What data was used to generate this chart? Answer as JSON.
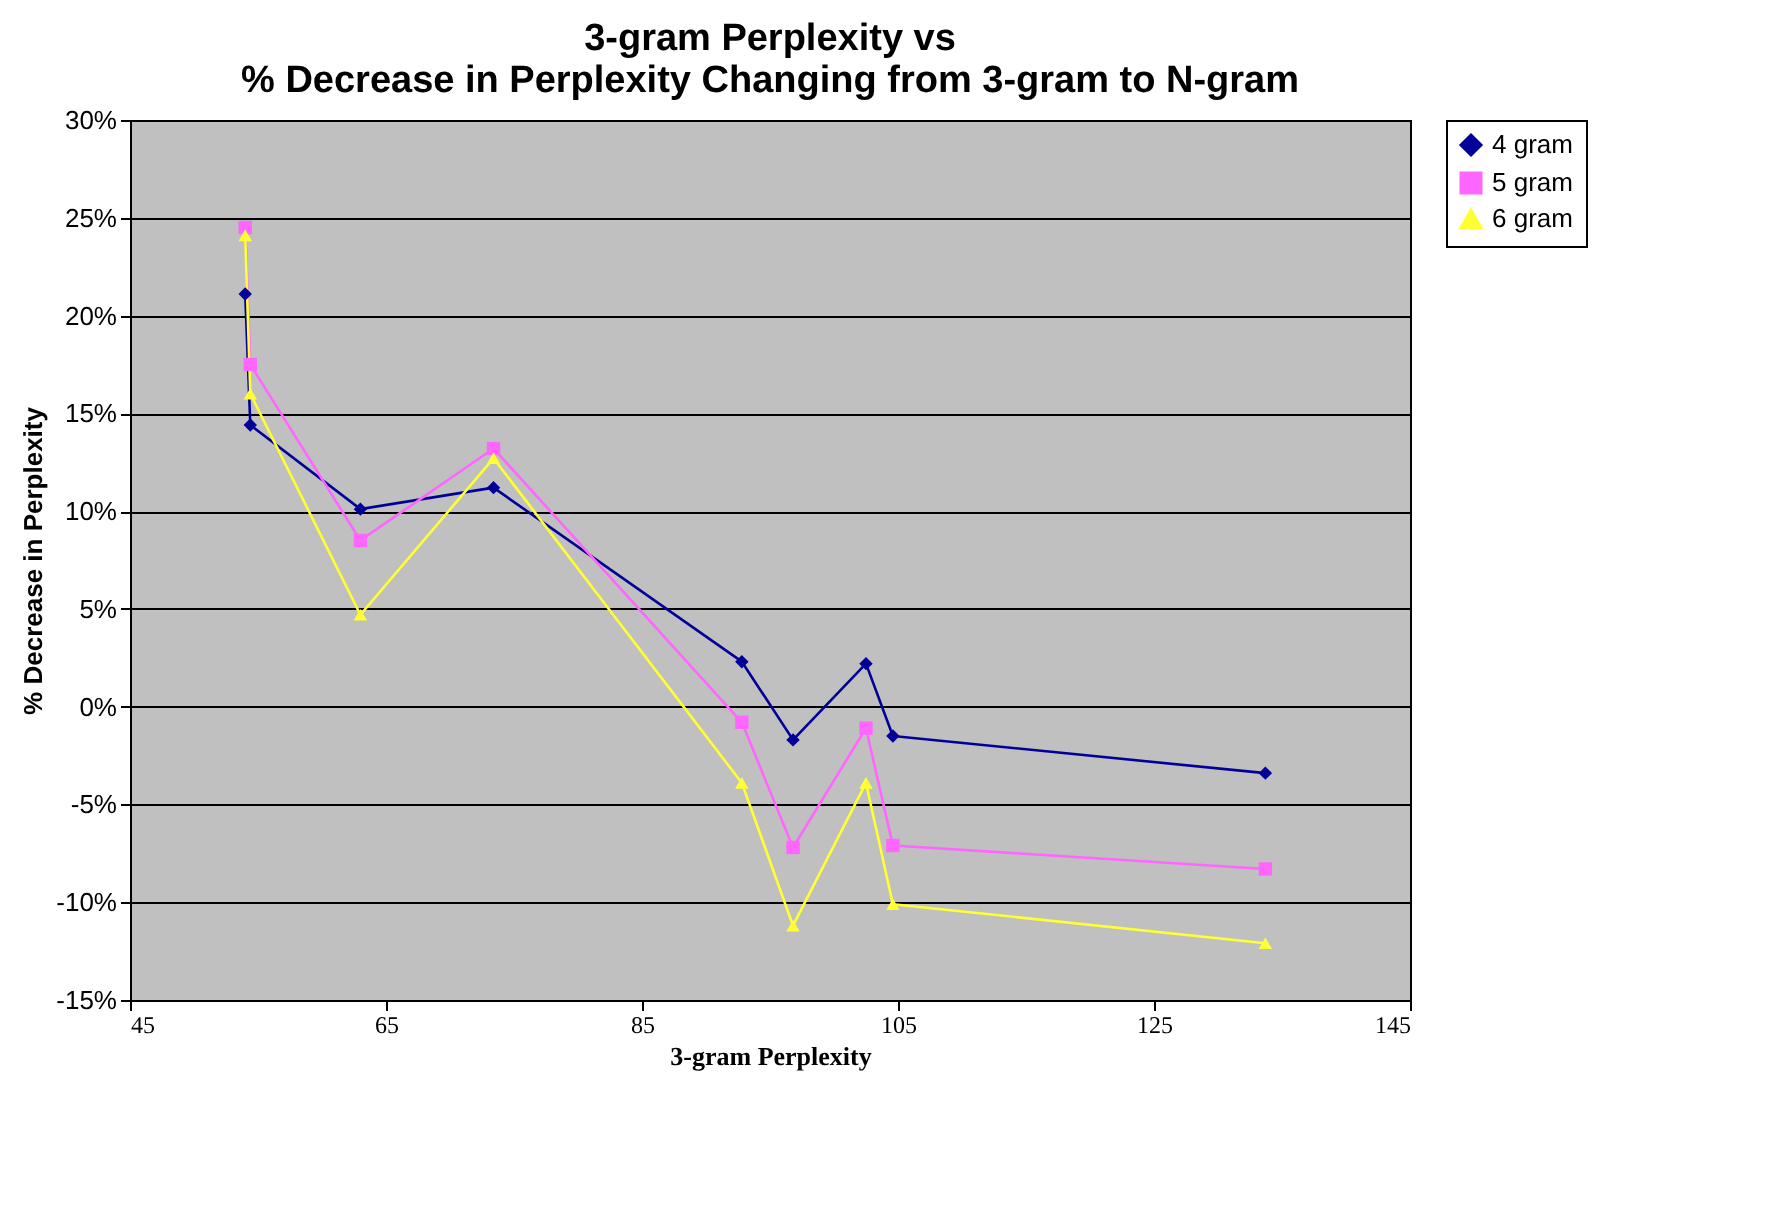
{
  "chart_data": {
    "type": "line",
    "title": [
      "3-gram Perplexity vs",
      "% Decrease in Perplexity Changing from 3-gram to N-gram"
    ],
    "xlabel": "3-gram Perplexity",
    "ylabel": "% Decrease in Perplexity",
    "x": [
      54.0,
      54.4,
      63.0,
      73.4,
      92.8,
      96.8,
      102.5,
      104.6,
      133.7
    ],
    "series": [
      {
        "name": "4 gram",
        "color": "#000099",
        "marker": "diamond",
        "values": [
          21.1,
          14.4,
          10.1,
          11.2,
          2.3,
          -1.7,
          2.2,
          -1.5,
          -3.4
        ]
      },
      {
        "name": "5 gram",
        "color": "#ff66ff",
        "marker": "square",
        "values": [
          24.5,
          17.5,
          8.5,
          13.2,
          -0.8,
          -7.2,
          -1.1,
          -7.1,
          -8.3
        ]
      },
      {
        "name": "6 gram",
        "color": "#ffff33",
        "marker": "triangle",
        "values": [
          24.1,
          16.0,
          4.7,
          12.7,
          -3.9,
          -11.2,
          -3.9,
          -10.1,
          -12.1
        ]
      }
    ],
    "xlim": [
      45,
      145
    ],
    "xticks": [
      45,
      65,
      85,
      105,
      125,
      145
    ],
    "ylim": [
      -15,
      30
    ],
    "yticks": [
      {
        "value": -15,
        "label": "-15%"
      },
      {
        "value": -10,
        "label": "-10%"
      },
      {
        "value": -5,
        "label": "-5%"
      },
      {
        "value": 0,
        "label": "0%"
      },
      {
        "value": 5,
        "label": "5%"
      },
      {
        "value": 10,
        "label": "10%"
      },
      {
        "value": 15,
        "label": "15%"
      },
      {
        "value": 20,
        "label": "20%"
      },
      {
        "value": 25,
        "label": "25%"
      },
      {
        "value": 30,
        "label": "30%"
      }
    ],
    "grid": "y",
    "legend": "right",
    "line_style": "solid"
  }
}
